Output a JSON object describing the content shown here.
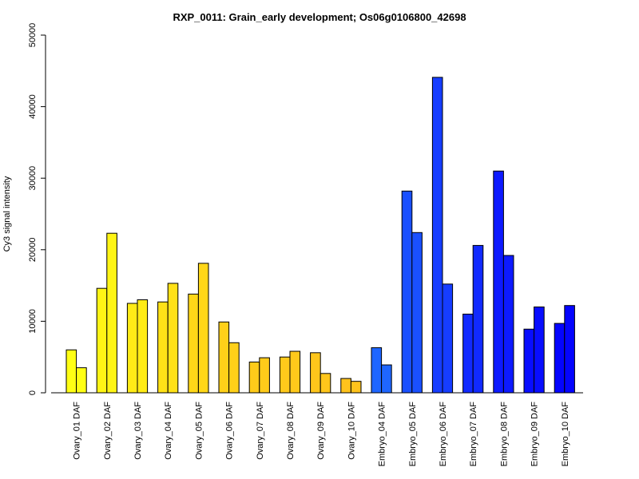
{
  "chart_data": {
    "type": "bar",
    "title": "RXP_0011: Grain_early development; Os06g0106800_42698",
    "xlabel": "",
    "ylabel": "Cy3 signal intensity",
    "ylim": [
      0,
      50000
    ],
    "yticks": [
      0,
      10000,
      20000,
      30000,
      40000,
      50000
    ],
    "grid": false,
    "legend": "none",
    "categories": [
      "Ovary_01 DAF",
      "Ovary_02 DAF",
      "Ovary_03 DAF",
      "Ovary_04 DAF",
      "Ovary_05 DAF",
      "Ovary_06 DAF",
      "Ovary_07 DAF",
      "Ovary_08 DAF",
      "Ovary_09 DAF",
      "Ovary_10 DAF",
      "Embryo_04 DAF",
      "Embryo_05 DAF",
      "Embryo_06 DAF",
      "Embryo_07 DAF",
      "Embryo_08 DAF",
      "Embryo_09 DAF",
      "Embryo_10 DAF"
    ],
    "series": [
      {
        "values": [
          6000,
          14600,
          12500,
          12700,
          13800,
          9900,
          4300,
          5000,
          5600,
          2000,
          6300,
          28200,
          44100,
          11000,
          31000,
          8900,
          9700
        ]
      },
      {
        "values": [
          3500,
          22300,
          13000,
          15300,
          18100,
          7000,
          4900,
          5800,
          2700,
          1600,
          3900,
          22400,
          15200,
          20600,
          19200,
          12000,
          12200
        ]
      }
    ],
    "colors": [
      "#ffff14",
      "#fff515",
      "#ffeb16",
      "#ffe117",
      "#ffd718",
      "#ffd019",
      "#ffcb1a",
      "#ffc91b",
      "#ffc61b",
      "#ffc31c",
      "#1f66ff",
      "#1a50ff",
      "#163dff",
      "#112aff",
      "#0d1aff",
      "#080dff",
      "#0404ff"
    ]
  }
}
